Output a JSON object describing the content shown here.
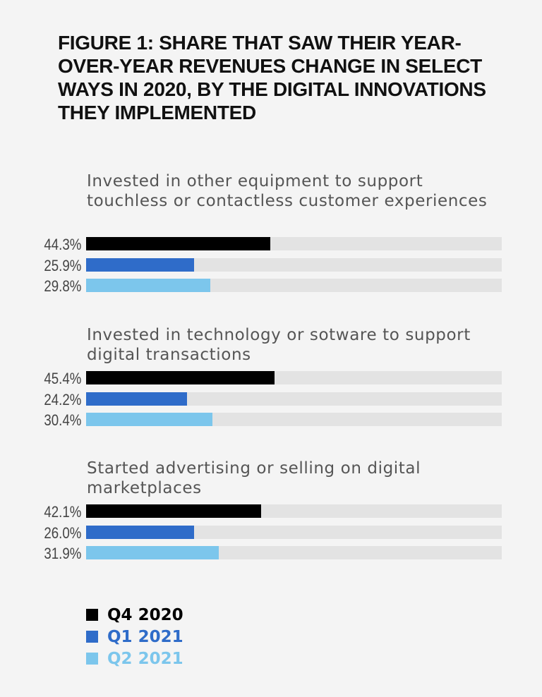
{
  "chart_data": {
    "type": "bar",
    "orientation": "horizontal",
    "title": "FIGURE 1: SHARE THAT SAW THEIR YEAR-OVER-YEAR REVENUES CHANGE IN SELECT WAYS IN 2020, BY THE DIGITAL INNOVATIONS THEY IMPLEMENTED",
    "categories": [
      "Invested in other equipment to support touchless or contactless customer experiences",
      "Invested in technology or sotware to support digital transactions",
      "Started advertising or selling on digital marketplaces"
    ],
    "series": [
      {
        "name": "Q4 2020",
        "color": "#000000",
        "values": [
          44.3,
          45.4,
          42.1
        ],
        "labels": [
          "44.3%",
          "45.4%",
          "42.1%"
        ]
      },
      {
        "name": "Q1 2021",
        "color": "#2f6cc9",
        "values": [
          25.9,
          24.2,
          26.0
        ],
        "labels": [
          "25.9%",
          "24.2%",
          "26.0%"
        ]
      },
      {
        "name": "Q2 2021",
        "color": "#7cc6ec",
        "values": [
          29.8,
          30.4,
          31.9
        ],
        "labels": [
          "29.8%",
          "30.4%",
          "31.9%"
        ]
      }
    ],
    "xlim": [
      0,
      100
    ],
    "track_color": "#e3e3e3",
    "grid": false,
    "legend": "bottom-left"
  }
}
